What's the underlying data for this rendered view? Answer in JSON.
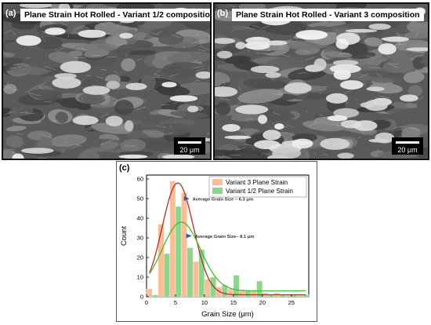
{
  "panels": {
    "a": {
      "label": "(a)",
      "title": "Plane Strain Hot Rolled - Variant 1/2 composition",
      "scale": "20 μm"
    },
    "b": {
      "label": "(b)",
      "title": "Plane Strain Hot Rolled - Variant 3 composition",
      "scale": "20 μm"
    },
    "c": {
      "label": "(c)"
    }
  },
  "chart_data": {
    "type": "bar",
    "xlabel": "Grain Size (μm)",
    "ylabel": "Count",
    "xlim": [
      0,
      28
    ],
    "ylim": [
      0,
      62
    ],
    "xticks": [
      0,
      5,
      10,
      15,
      20,
      25
    ],
    "yticks": [
      0,
      10,
      20,
      30,
      40,
      50,
      60
    ],
    "x": [
      1,
      3,
      5,
      7,
      9,
      11,
      13,
      15,
      17,
      19,
      21,
      23,
      25,
      27
    ],
    "series": [
      {
        "name": "Variant 3 Plane Strain",
        "color": "#f9be96",
        "values": [
          4,
          37,
          59,
          53,
          18,
          9,
          5,
          4,
          3,
          3,
          2,
          2,
          1,
          1
        ]
      },
      {
        "name": "Variant 1/2  Plane Strain",
        "color": "#8ed48e",
        "values": [
          1,
          22,
          46,
          25,
          24,
          10,
          6,
          11,
          3,
          8,
          1,
          1,
          1,
          1
        ]
      }
    ],
    "fits": [
      {
        "series": "Variant 3 Plane Strain",
        "color": "#b0302c",
        "center": 5.4,
        "width": 2.7,
        "peak": 58,
        "base": 1
      },
      {
        "series": "Variant 1/2  Plane Strain",
        "color": "#44bb33",
        "center": 6.0,
        "width": 3.3,
        "peak": 38,
        "base": 3
      }
    ],
    "annotations": [
      {
        "text": "Average Grain Size – 6.3 μm",
        "x": 7.8,
        "y": 50
      },
      {
        "text": "Average Grain Size– 8.1 μm",
        "x": 8.2,
        "y": 31
      }
    ],
    "legend_position": "top-right"
  }
}
